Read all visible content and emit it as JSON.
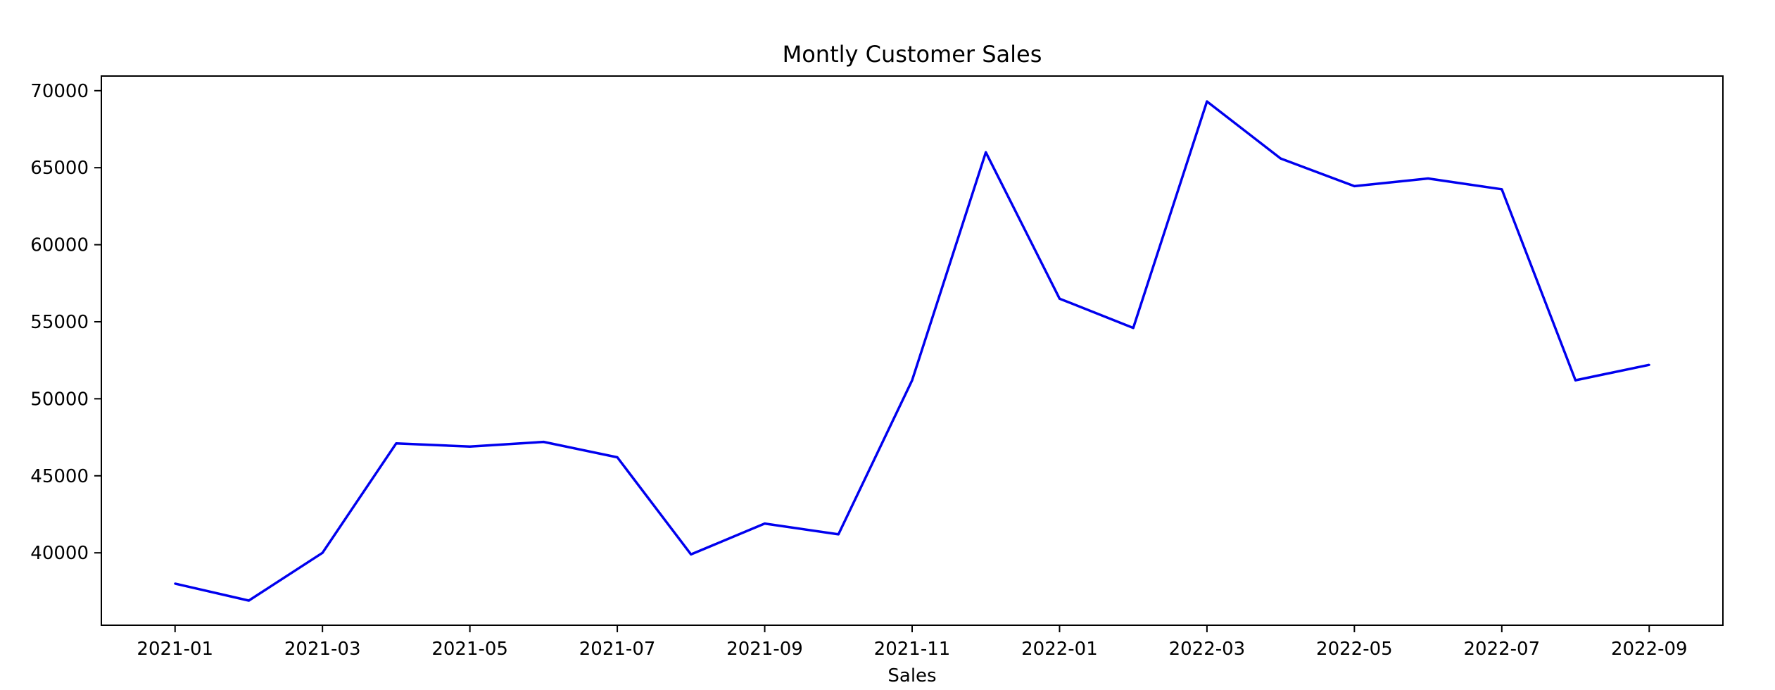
{
  "chart_data": {
    "type": "line",
    "title": "Montly Customer Sales",
    "xlabel": "Sales",
    "ylabel": "",
    "x": [
      "2021-01",
      "2021-02",
      "2021-03",
      "2021-04",
      "2021-05",
      "2021-06",
      "2021-07",
      "2021-08",
      "2021-09",
      "2021-10",
      "2021-11",
      "2021-12",
      "2022-01",
      "2022-02",
      "2022-03",
      "2022-04",
      "2022-05",
      "2022-06",
      "2022-07",
      "2022-08",
      "2022-09"
    ],
    "series": [
      {
        "color": "#0000ee",
        "values": [
          38000,
          36900,
          40000,
          47100,
          46900,
          47200,
          46200,
          39900,
          41900,
          41200,
          51200,
          66000,
          56500,
          54600,
          69300,
          65600,
          63800,
          64300,
          63600,
          51200,
          52200
        ]
      }
    ],
    "x_tick_labels": [
      "2021-01",
      "2021-03",
      "2021-05",
      "2021-07",
      "2021-09",
      "2021-11",
      "2022-01",
      "2022-03",
      "2022-05",
      "2022-07",
      "2022-09"
    ],
    "y_tick_labels": [
      "40000",
      "45000",
      "50000",
      "55000",
      "60000",
      "65000",
      "70000"
    ],
    "y_ticks": [
      40000,
      45000,
      50000,
      55000,
      60000,
      65000,
      70000
    ],
    "xlim": [
      "2020-12",
      "2022-10"
    ],
    "ylim": [
      35300,
      70950
    ],
    "grid": false,
    "legend": "none"
  }
}
